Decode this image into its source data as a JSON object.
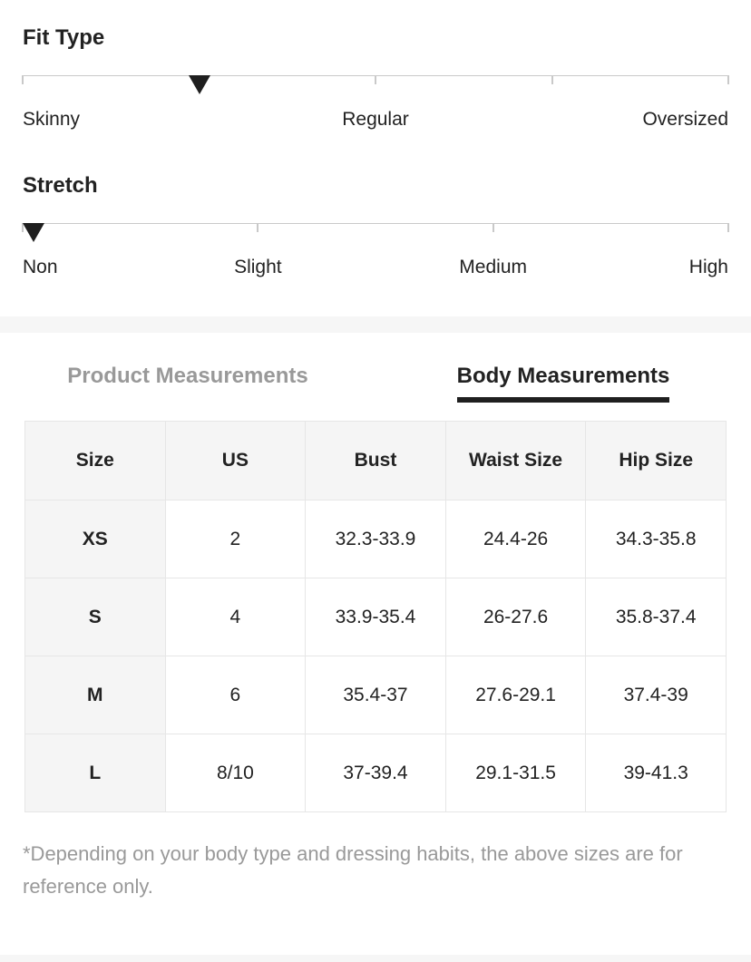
{
  "sliders": {
    "fit": {
      "title": "Fit Type",
      "labels": [
        "Skinny",
        "Regular",
        "Oversized"
      ],
      "ticks_pct": [
        0,
        25,
        50,
        75,
        100
      ],
      "marker_pct": 25
    },
    "stretch": {
      "title": "Stretch",
      "labels": [
        "Non",
        "Slight",
        "Medium",
        "High"
      ],
      "ticks_pct": [
        0,
        33.333,
        66.667,
        100
      ],
      "marker_pct": 0
    }
  },
  "tabs": {
    "product": "Product Measurements",
    "body": "Body Measurements",
    "active": "Body Measurements"
  },
  "table": {
    "headers": [
      "Size",
      "US",
      "Bust",
      "Waist Size",
      "Hip Size"
    ],
    "rows": [
      [
        "XS",
        "2",
        "32.3-33.9",
        "24.4-26",
        "34.3-35.8"
      ],
      [
        "S",
        "4",
        "33.9-35.4",
        "26-27.6",
        "35.8-37.4"
      ],
      [
        "M",
        "6",
        "35.4-37",
        "27.6-29.1",
        "37.4-39"
      ],
      [
        "L",
        "8/10",
        "37-39.4",
        "29.1-31.5",
        "39-41.3"
      ]
    ]
  },
  "footnote": "*Depending on your body type and dressing habits, the above sizes are for reference only.",
  "colors": {
    "text": "#222222",
    "muted": "#999999",
    "line": "#c9c9c9",
    "marker": "#1f1f1f",
    "table-border": "#e6e6e6",
    "cell-bg": "#f5f5f5",
    "band": "#f6f6f6"
  }
}
